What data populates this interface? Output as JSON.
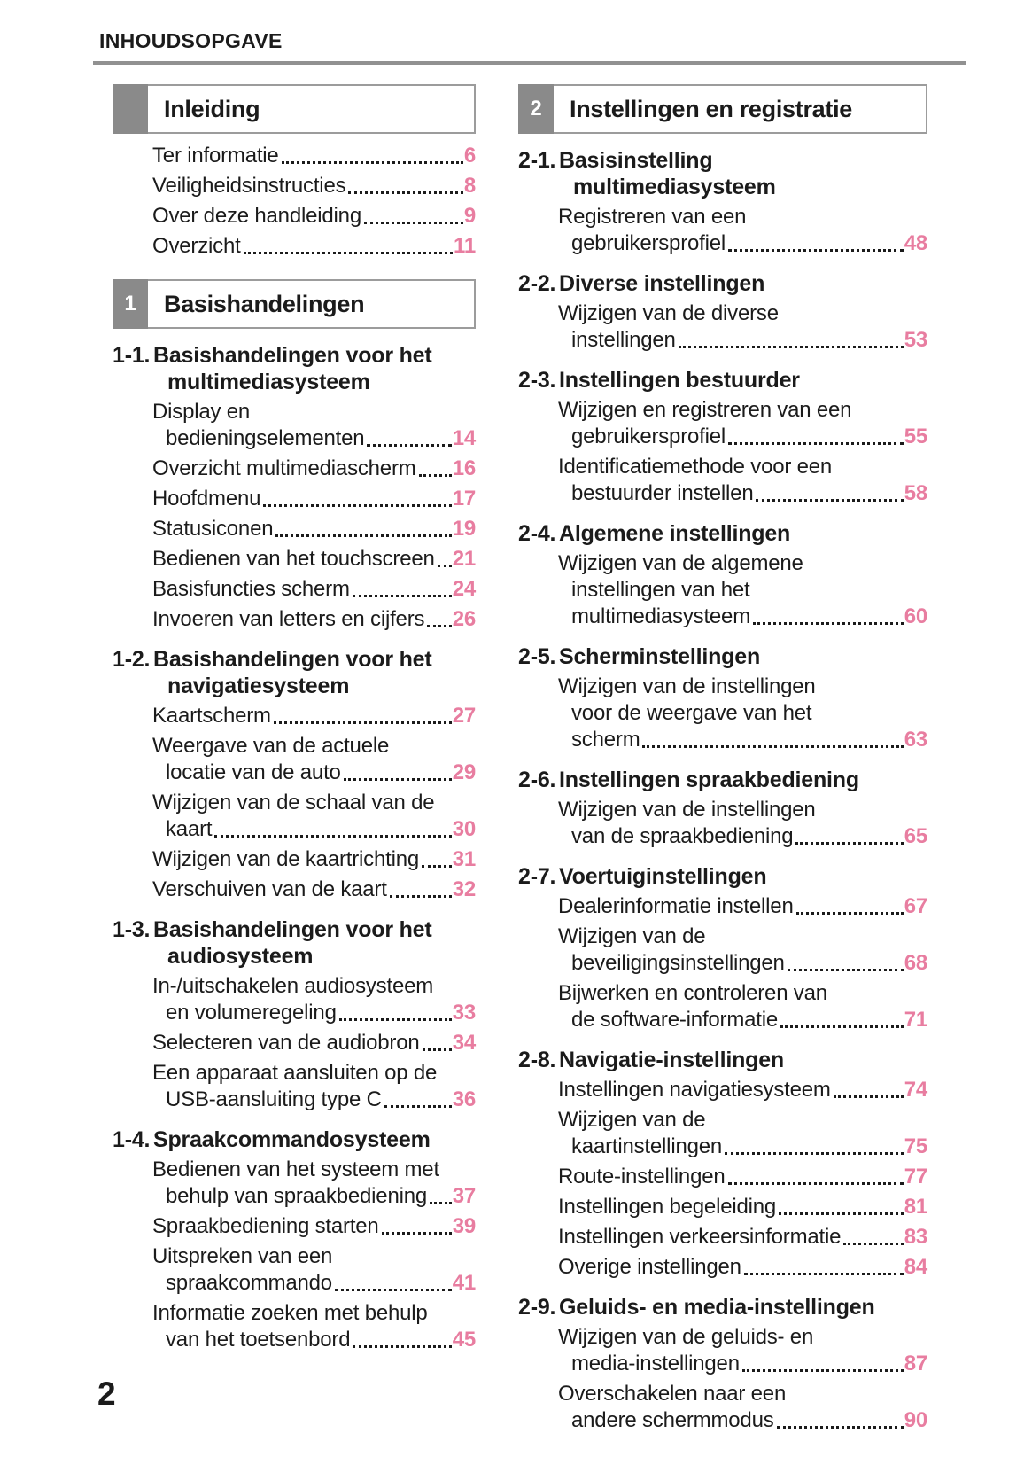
{
  "page": {
    "header": "INHOUDSOPGAVE",
    "page_number": "2",
    "accent_pink": "#e87da0",
    "tab_gray": "#8a8a8a"
  },
  "toc": {
    "left": [
      {
        "number": "",
        "title": "Inleiding",
        "sections": [
          {
            "label": "",
            "title_lines": [],
            "entries": [
              {
                "lines": [
                  "Ter informatie"
                ],
                "page": "6"
              },
              {
                "lines": [
                  "Veiligheidsinstructies"
                ],
                "page": "8"
              },
              {
                "lines": [
                  "Over deze handleiding"
                ],
                "page": "9"
              },
              {
                "lines": [
                  "Overzicht"
                ],
                "page": "11"
              }
            ]
          }
        ]
      },
      {
        "number": "1",
        "title": "Basishandelingen",
        "sections": [
          {
            "label": "1-1.",
            "title_lines": [
              "Basishandelingen voor het",
              "multimediasysteem"
            ],
            "entries": [
              {
                "lines": [
                  "Display en",
                  "bedieningselementen"
                ],
                "page": "14"
              },
              {
                "lines": [
                  "Overzicht multimediascherm"
                ],
                "page": "16"
              },
              {
                "lines": [
                  "Hoofdmenu"
                ],
                "page": "17"
              },
              {
                "lines": [
                  "Statusiconen"
                ],
                "page": "19"
              },
              {
                "lines": [
                  "Bedienen van het touchscreen"
                ],
                "page": "21"
              },
              {
                "lines": [
                  "Basisfuncties scherm"
                ],
                "page": "24"
              },
              {
                "lines": [
                  "Invoeren van letters en cijfers"
                ],
                "page": "26"
              }
            ]
          },
          {
            "label": "1-2.",
            "title_lines": [
              "Basishandelingen voor het",
              "navigatiesysteem"
            ],
            "entries": [
              {
                "lines": [
                  "Kaartscherm"
                ],
                "page": "27"
              },
              {
                "lines": [
                  "Weergave van de actuele",
                  "locatie van de auto"
                ],
                "page": "29"
              },
              {
                "lines": [
                  "Wijzigen van de schaal van de",
                  "kaart"
                ],
                "page": "30"
              },
              {
                "lines": [
                  "Wijzigen van de kaartrichting"
                ],
                "page": "31"
              },
              {
                "lines": [
                  "Verschuiven van de kaart"
                ],
                "page": "32"
              }
            ]
          },
          {
            "label": "1-3.",
            "title_lines": [
              "Basishandelingen voor het",
              "audiosysteem"
            ],
            "entries": [
              {
                "lines": [
                  "In-/uitschakelen audiosysteem",
                  "en volumeregeling"
                ],
                "page": "33"
              },
              {
                "lines": [
                  "Selecteren van de audiobron"
                ],
                "page": "34"
              },
              {
                "lines": [
                  "Een apparaat aansluiten op de",
                  "USB-aansluiting type C"
                ],
                "page": "36"
              }
            ]
          },
          {
            "label": "1-4.",
            "title_lines": [
              "Spraakcommandosysteem"
            ],
            "entries": [
              {
                "lines": [
                  "Bedienen van het systeem met",
                  "behulp van spraakbediening"
                ],
                "page": "37"
              },
              {
                "lines": [
                  "Spraakbediening starten"
                ],
                "page": "39"
              },
              {
                "lines": [
                  "Uitspreken van een",
                  "spraakcommando"
                ],
                "page": "41"
              },
              {
                "lines": [
                  "Informatie zoeken met behulp",
                  "van het toetsenbord"
                ],
                "page": "45"
              }
            ]
          }
        ]
      }
    ],
    "right": [
      {
        "number": "2",
        "title": "Instellingen en registratie",
        "sections": [
          {
            "label": "2-1.",
            "title_lines": [
              "Basisinstelling",
              "multimediasysteem"
            ],
            "entries": [
              {
                "lines": [
                  "Registreren van een",
                  "gebruikersprofiel"
                ],
                "page": "48"
              }
            ]
          },
          {
            "label": "2-2.",
            "title_lines": [
              "Diverse instellingen"
            ],
            "entries": [
              {
                "lines": [
                  "Wijzigen van de diverse",
                  "instellingen"
                ],
                "page": "53"
              }
            ]
          },
          {
            "label": "2-3.",
            "title_lines": [
              "Instellingen bestuurder"
            ],
            "entries": [
              {
                "lines": [
                  "Wijzigen en registreren van een",
                  "gebruikersprofiel"
                ],
                "page": "55"
              },
              {
                "lines": [
                  "Identificatiemethode voor een",
                  "bestuurder instellen"
                ],
                "page": "58"
              }
            ]
          },
          {
            "label": "2-4.",
            "title_lines": [
              "Algemene instellingen"
            ],
            "entries": [
              {
                "lines": [
                  "Wijzigen van de algemene",
                  "instellingen van het",
                  "multimediasysteem"
                ],
                "page": "60"
              }
            ]
          },
          {
            "label": "2-5.",
            "title_lines": [
              "Scherminstellingen"
            ],
            "entries": [
              {
                "lines": [
                  "Wijzigen van de instellingen",
                  "voor de weergave van het",
                  "scherm"
                ],
                "page": "63"
              }
            ]
          },
          {
            "label": "2-6.",
            "title_lines": [
              "Instellingen spraakbediening"
            ],
            "entries": [
              {
                "lines": [
                  "Wijzigen van de instellingen",
                  "van de spraakbediening"
                ],
                "page": "65"
              }
            ]
          },
          {
            "label": "2-7.",
            "title_lines": [
              "Voertuiginstellingen"
            ],
            "entries": [
              {
                "lines": [
                  "Dealerinformatie instellen"
                ],
                "page": "67"
              },
              {
                "lines": [
                  "Wijzigen van de",
                  "beveiligingsinstellingen"
                ],
                "page": "68"
              },
              {
                "lines": [
                  "Bijwerken en controleren van",
                  "de software-informatie"
                ],
                "page": "71"
              }
            ]
          },
          {
            "label": "2-8.",
            "title_lines": [
              "Navigatie-instellingen"
            ],
            "entries": [
              {
                "lines": [
                  "Instellingen navigatiesysteem"
                ],
                "page": "74"
              },
              {
                "lines": [
                  "Wijzigen van de",
                  "kaartinstellingen"
                ],
                "page": "75"
              },
              {
                "lines": [
                  "Route-instellingen"
                ],
                "page": "77"
              },
              {
                "lines": [
                  "Instellingen begeleiding"
                ],
                "page": "81"
              },
              {
                "lines": [
                  "Instellingen verkeersinformatie"
                ],
                "page": "83"
              },
              {
                "lines": [
                  "Overige instellingen"
                ],
                "page": "84"
              }
            ]
          },
          {
            "label": "2-9.",
            "title_lines": [
              "Geluids- en media-instellingen"
            ],
            "entries": [
              {
                "lines": [
                  "Wijzigen van de geluids- en",
                  "media-instellingen"
                ],
                "page": "87"
              },
              {
                "lines": [
                  "Overschakelen naar een",
                  "andere schermmodus"
                ],
                "page": "90"
              }
            ]
          }
        ]
      }
    ]
  }
}
